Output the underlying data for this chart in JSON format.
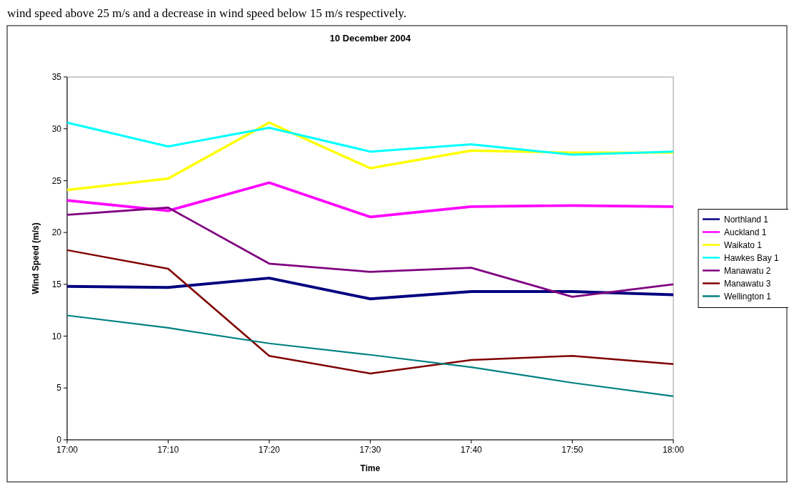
{
  "chart_data": {
    "type": "line",
    "title": "10 December 2004",
    "xlabel": "Time",
    "ylabel": "Wind Speed (m/s)",
    "annotations": [
      "wind speed above 25 m/s and a decrease in wind speed below 15 m/s respectively."
    ],
    "categories": [
      "17:00",
      "17:10",
      "17:20",
      "17:30",
      "17:40",
      "17:50",
      "18:00"
    ],
    "series": [
      {
        "name": "Northland 1",
        "color": "#000080",
        "values": [
          14.8,
          14.7,
          15.6,
          13.6,
          14.3,
          14.3,
          14.0
        ]
      },
      {
        "name": "Auckland 1",
        "color": "#ff00ff",
        "values": [
          23.1,
          22.1,
          24.8,
          21.5,
          22.5,
          22.6,
          22.5
        ]
      },
      {
        "name": "Waikato 1",
        "color": "#ffff00",
        "values": [
          24.1,
          25.2,
          30.6,
          26.2,
          27.9,
          27.7,
          27.7
        ]
      },
      {
        "name": "Hawkes Bay 1",
        "color": "#00ffff",
        "values": [
          30.6,
          28.3,
          30.1,
          27.8,
          28.5,
          27.5,
          27.8
        ]
      },
      {
        "name": "Manawatu 2",
        "color": "#800080",
        "values": [
          21.7,
          22.4,
          17.0,
          16.2,
          16.6,
          13.8,
          15.0
        ]
      },
      {
        "name": "Manawatu 3",
        "color": "#800000",
        "values": [
          18.3,
          16.5,
          8.1,
          6.4,
          7.7,
          8.1,
          7.3
        ]
      },
      {
        "name": "Wellington 1",
        "color": "#008080",
        "values": [
          12.0,
          10.8,
          9.3,
          8.2,
          7.0,
          5.5,
          4.2
        ]
      }
    ],
    "ylim": [
      0,
      35
    ],
    "yticks": [
      0,
      5,
      10,
      15,
      20,
      25,
      30,
      35
    ],
    "grid": false,
    "legend": "right",
    "marker": "none",
    "line_style": "solid"
  }
}
